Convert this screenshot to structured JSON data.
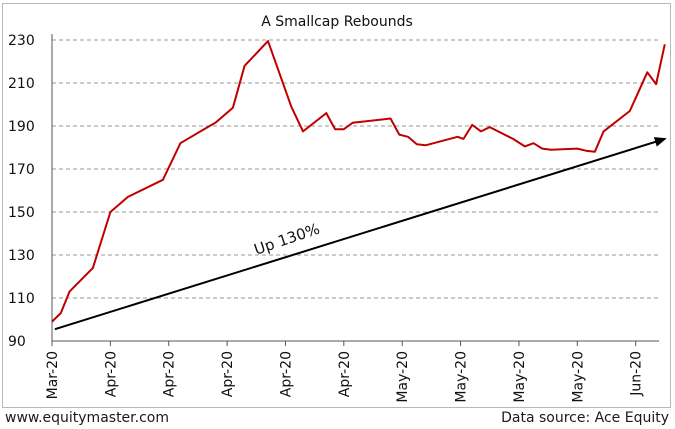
{
  "chart_data": {
    "type": "line",
    "title": "A Smallcap Rebounds",
    "xlabel": "",
    "ylabel": "",
    "ylim": [
      90,
      230
    ],
    "yticks": [
      90,
      110,
      130,
      150,
      170,
      190,
      210,
      230
    ],
    "xlim": [
      0,
      104
    ],
    "xticks": [
      {
        "label": "Mar-20",
        "x": 0
      },
      {
        "label": "Apr-20",
        "x": 10
      },
      {
        "label": "Apr-20",
        "x": 20
      },
      {
        "label": "Apr-20",
        "x": 30
      },
      {
        "label": "Apr-20",
        "x": 40
      },
      {
        "label": "Apr-20",
        "x": 50
      },
      {
        "label": "May-20",
        "x": 60
      },
      {
        "label": "May-20",
        "x": 70
      },
      {
        "label": "May-20",
        "x": 80
      },
      {
        "label": "May-20",
        "x": 90
      },
      {
        "label": "Jun-20",
        "x": 100
      }
    ],
    "grid": "horizontal dashed",
    "series": [
      {
        "color": "#c00000",
        "points": [
          [
            0,
            99
          ],
          [
            1.5,
            103
          ],
          [
            3,
            113
          ],
          [
            7,
            124
          ],
          [
            10,
            150
          ],
          [
            13,
            157
          ],
          [
            19,
            165
          ],
          [
            22,
            182
          ],
          [
            27,
            190
          ],
          [
            28,
            191.5
          ],
          [
            31,
            198.5
          ],
          [
            33,
            218
          ],
          [
            37,
            229.5
          ],
          [
            41,
            199
          ],
          [
            43,
            187.5
          ],
          [
            47,
            196
          ],
          [
            48.5,
            188.5
          ],
          [
            50,
            188.5
          ],
          [
            51.5,
            191.5
          ],
          [
            58,
            193.5
          ],
          [
            59.5,
            186
          ],
          [
            61,
            185
          ],
          [
            62.5,
            181.5
          ],
          [
            64,
            181
          ],
          [
            69.5,
            185
          ],
          [
            70.5,
            184
          ],
          [
            72,
            190.5
          ],
          [
            73.5,
            187.5
          ],
          [
            75,
            189.5
          ],
          [
            79,
            184
          ],
          [
            81,
            180.5
          ],
          [
            82.5,
            182
          ],
          [
            84,
            179.5
          ],
          [
            85.5,
            179
          ],
          [
            90,
            179.5
          ],
          [
            91.5,
            178.5
          ],
          [
            93,
            178
          ],
          [
            94.5,
            187.5
          ],
          [
            99,
            197
          ],
          [
            100.5,
            206
          ],
          [
            102,
            215
          ],
          [
            103.5,
            209.5
          ],
          [
            105,
            228
          ]
        ]
      }
    ],
    "annotations": [
      {
        "type": "arrow",
        "from": [
          0.5,
          95.5
        ],
        "to": [
          105,
          184
        ],
        "color": "#000000"
      },
      {
        "type": "text",
        "text": "Up 130%",
        "at": [
          35,
          130
        ],
        "rotate": -19
      }
    ]
  },
  "footer": {
    "source_left": "www.equitymaster.com",
    "source_right": "Data source: Ace Equity"
  }
}
